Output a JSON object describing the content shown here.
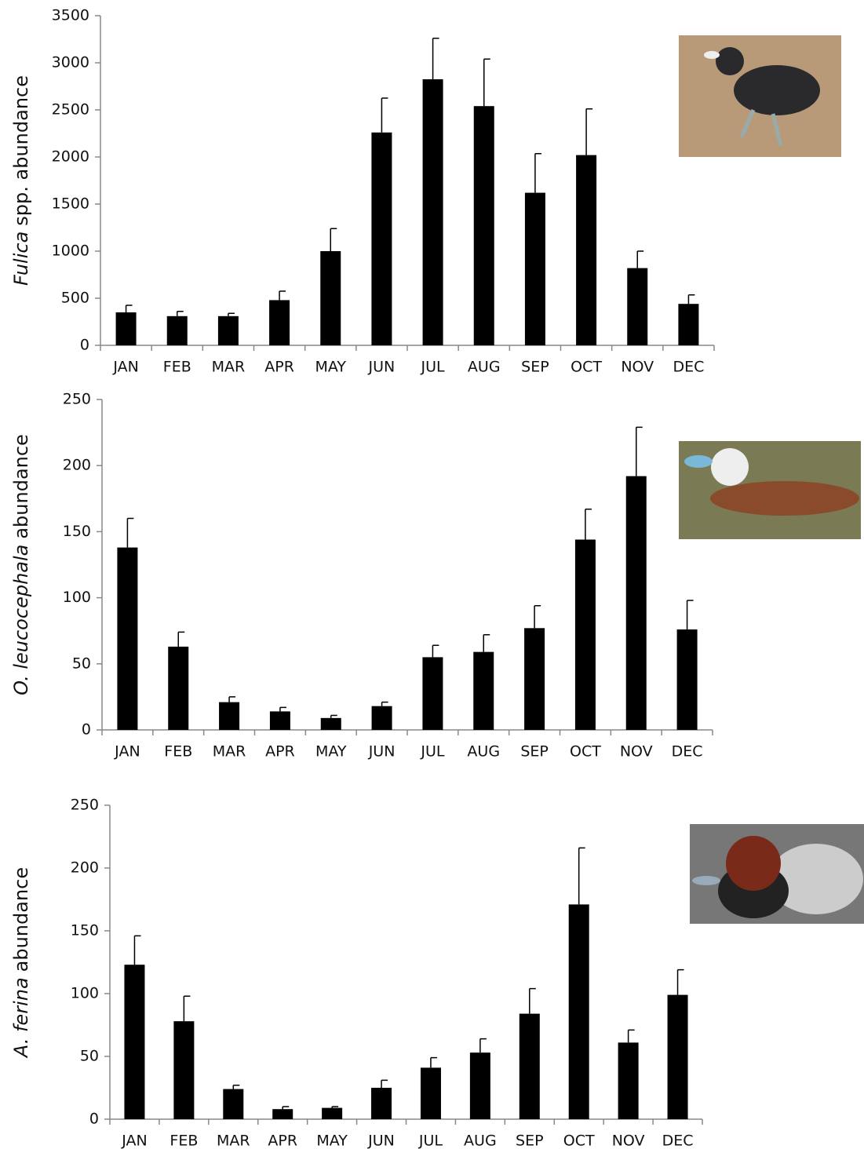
{
  "chart_data": [
    {
      "type": "bar",
      "ylabel": [
        "Fulica",
        "spp. abundance"
      ],
      "categories": [
        "JAN",
        "FEB",
        "MAR",
        "APR",
        "MAY",
        "JUN",
        "JUL",
        "AUG",
        "SEP",
        "OCT",
        "NOV",
        "DEC"
      ],
      "values": [
        350,
        310,
        310,
        480,
        1000,
        2260,
        2825,
        2540,
        1620,
        2020,
        820,
        440
      ],
      "errors": [
        75,
        50,
        30,
        95,
        240,
        365,
        435,
        500,
        415,
        490,
        180,
        95
      ],
      "color": "#000000",
      "ylim": [
        0,
        3500
      ],
      "yticks": [
        0,
        500,
        1000,
        1500,
        2000,
        2500,
        3000,
        3500
      ]
    },
    {
      "type": "bar",
      "ylabel": [
        "O. leucocephala",
        "abundance"
      ],
      "categories": [
        "JAN",
        "FEB",
        "MAR",
        "APR",
        "MAY",
        "JUN",
        "JUL",
        "AUG",
        "SEP",
        "OCT",
        "NOV",
        "DEC"
      ],
      "values": [
        138,
        63,
        21,
        14,
        9,
        18,
        55,
        59,
        77,
        144,
        192,
        76
      ],
      "errors": [
        22,
        11,
        4,
        3,
        2,
        3,
        9,
        13,
        17,
        23,
        37,
        22
      ],
      "color": "#000000",
      "ylim": [
        0,
        250
      ],
      "yticks": [
        0,
        50,
        100,
        150,
        200,
        250
      ]
    },
    {
      "type": "bar",
      "ylabel": [
        "A. ferina",
        "abundance"
      ],
      "categories": [
        "JAN",
        "FEB",
        "MAR",
        "APR",
        "MAY",
        "JUN",
        "JUL",
        "AUG",
        "SEP",
        "OCT",
        "NOV",
        "DEC"
      ],
      "values": [
        123,
        78,
        24,
        8,
        9,
        25,
        41,
        53,
        84,
        171,
        61,
        99
      ],
      "errors": [
        23,
        20,
        3,
        2,
        1,
        6,
        8,
        11,
        20,
        45,
        10,
        20
      ],
      "color": "#000000",
      "ylim": [
        0,
        250
      ],
      "yticks": [
        0,
        50,
        100,
        150,
        200,
        250
      ]
    }
  ]
}
